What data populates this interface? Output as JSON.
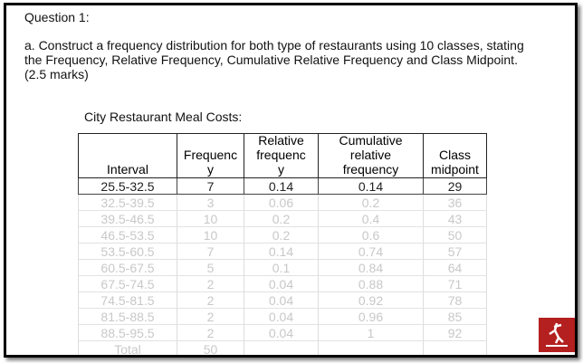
{
  "question": "Question 1:",
  "instructions": [
    "a. Construct a frequency distribution for both type of restaurants using 10 classes, stating",
    "the Frequency, Relative Frequency, Cumulative Relative Frequency and Class Midpoint.",
    "(2.5 marks)"
  ],
  "table": {
    "caption": "City Restaurant Meal Costs:",
    "header": [
      [
        "Interval"
      ],
      [
        "Frequenc",
        "y"
      ],
      [
        "Relative",
        "frequenc",
        "y"
      ],
      [
        "Cumulative",
        "relative",
        "frequency"
      ],
      [
        "Class",
        "midpoint"
      ]
    ],
    "rows": [
      [
        "25.5-32.5",
        "7",
        "0.14",
        "0.14",
        "29"
      ],
      [
        "32.5-39.5",
        "3",
        "0.06",
        "0.2",
        "36"
      ],
      [
        "39.5-46.5",
        "10",
        "0.2",
        "0.4",
        "43"
      ],
      [
        "46.5-53.5",
        "10",
        "0.2",
        "0.6",
        "50"
      ],
      [
        "53.5-60.5",
        "7",
        "0.14",
        "0.74",
        "57"
      ],
      [
        "60.5-67.5",
        "5",
        "0.1",
        "0.84",
        "64"
      ],
      [
        "67.5-74.5",
        "2",
        "0.04",
        "0.88",
        "71"
      ],
      [
        "74.5-81.5",
        "2",
        "0.04",
        "0.92",
        "78"
      ],
      [
        "81.5-88.5",
        "2",
        "0.04",
        "0.96",
        "85"
      ],
      [
        "88.5-95.5",
        "2",
        "0.04",
        "1",
        "92"
      ],
      [
        "Total",
        "50"
      ]
    ]
  }
}
